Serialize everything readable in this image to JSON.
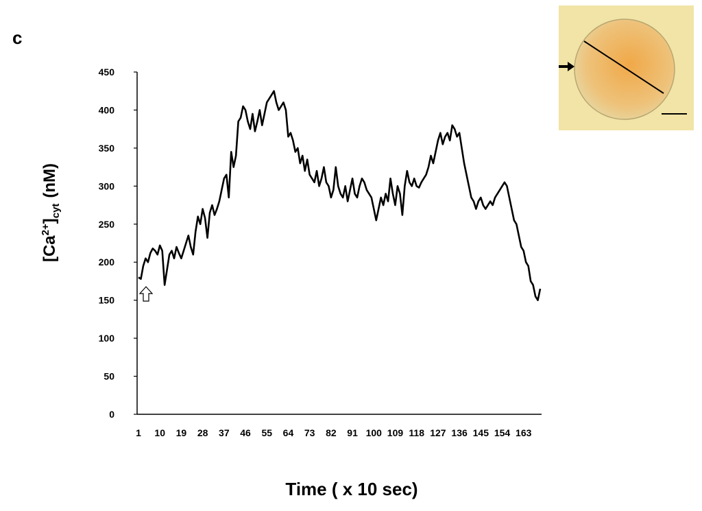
{
  "chart_data": {
    "type": "line",
    "panel_label": "c",
    "xlabel": "Time ( x 10 sec)",
    "ylabel": {
      "text": "[Ca",
      "superscript": "2+",
      "text2": "]",
      "subscript": "cyt",
      "unit": "(nM)"
    },
    "color": "#000000",
    "x": [
      1,
      2,
      3,
      4,
      5,
      6,
      7,
      8,
      9,
      10,
      11,
      12,
      13,
      14,
      15,
      16,
      17,
      18,
      19,
      20,
      21,
      22,
      23,
      24,
      25,
      26,
      27,
      28,
      29,
      30,
      31,
      32,
      33,
      34,
      35,
      36,
      37,
      38,
      39,
      40,
      41,
      42,
      43,
      44,
      45,
      46,
      47,
      48,
      49,
      50,
      51,
      52,
      53,
      54,
      55,
      56,
      57,
      58,
      59,
      60,
      61,
      62,
      63,
      64,
      65,
      66,
      67,
      68,
      69,
      70,
      71,
      72,
      73,
      74,
      75,
      76,
      77,
      78,
      79,
      80,
      81,
      82,
      83,
      84,
      85,
      86,
      87,
      88,
      89,
      90,
      91,
      92,
      93,
      94,
      95,
      96,
      97,
      98,
      99,
      100,
      101,
      102,
      103,
      104,
      105,
      106,
      107,
      108,
      109,
      110,
      111,
      112,
      113,
      114,
      115,
      116,
      117,
      118,
      119,
      120,
      121,
      122,
      123,
      124,
      125,
      126,
      127,
      128,
      129,
      130,
      131,
      132,
      133,
      134,
      135,
      136,
      137,
      138,
      139,
      140,
      141,
      142,
      143,
      144,
      145,
      146,
      147,
      148,
      149,
      150,
      151,
      152,
      153,
      154,
      155,
      156,
      157,
      158,
      159,
      160,
      161,
      162,
      163,
      164,
      165,
      166,
      167,
      168,
      169,
      170
    ],
    "values": [
      180,
      178,
      195,
      205,
      200,
      212,
      218,
      215,
      210,
      222,
      215,
      170,
      190,
      210,
      215,
      205,
      220,
      212,
      205,
      215,
      225,
      235,
      220,
      210,
      240,
      260,
      250,
      270,
      258,
      232,
      265,
      275,
      262,
      270,
      280,
      295,
      310,
      315,
      285,
      345,
      325,
      340,
      385,
      390,
      405,
      400,
      385,
      375,
      395,
      372,
      385,
      400,
      380,
      395,
      410,
      415,
      420,
      425,
      410,
      400,
      405,
      410,
      400,
      365,
      370,
      360,
      345,
      350,
      330,
      340,
      320,
      335,
      315,
      310,
      305,
      320,
      300,
      310,
      325,
      305,
      300,
      285,
      295,
      325,
      300,
      290,
      285,
      300,
      280,
      295,
      310,
      290,
      285,
      300,
      310,
      305,
      295,
      290,
      285,
      270,
      255,
      270,
      285,
      275,
      290,
      280,
      310,
      290,
      275,
      300,
      290,
      262,
      300,
      320,
      305,
      300,
      310,
      300,
      298,
      305,
      310,
      315,
      325,
      340,
      330,
      345,
      360,
      370,
      355,
      365,
      370,
      360,
      380,
      375,
      365,
      370,
      350,
      330,
      315,
      300,
      285,
      280,
      270,
      280,
      285,
      275,
      270,
      275,
      280,
      275,
      285,
      290,
      295,
      300,
      305,
      300,
      285,
      270,
      255,
      250,
      235,
      220,
      215,
      200,
      195,
      175,
      170,
      155,
      150,
      165
    ],
    "xlim": [
      1,
      170
    ],
    "xticks": [
      1,
      10,
      19,
      28,
      37,
      46,
      55,
      64,
      73,
      82,
      91,
      100,
      109,
      118,
      127,
      136,
      145,
      154,
      163
    ],
    "ylim": [
      0,
      450
    ],
    "yticks": [
      0,
      50,
      100,
      150,
      200,
      250,
      300,
      350,
      400,
      450
    ]
  }
}
